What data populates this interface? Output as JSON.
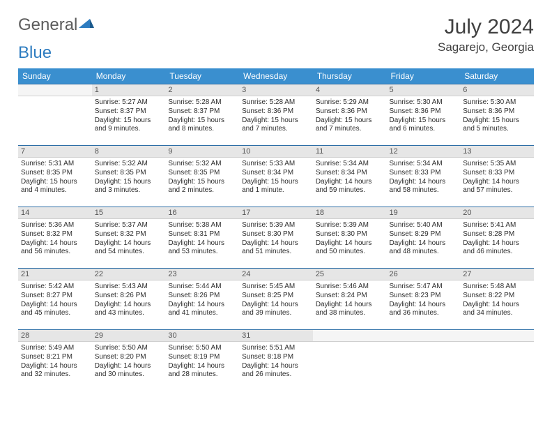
{
  "logo": {
    "text1": "General",
    "text2": "Blue"
  },
  "title": "July 2024",
  "location": "Sagarejo, Georgia",
  "colors": {
    "header_bg": "#3a8fcf",
    "header_text": "#ffffff",
    "daynum_bg": "#e6e6e6",
    "daynum_border_top": "#2d6ea6",
    "text": "#2c2c2c",
    "title_color": "#404040",
    "logo_gray": "#5c5c5c",
    "logo_blue": "#2d7cc0"
  },
  "weekdays": [
    "Sunday",
    "Monday",
    "Tuesday",
    "Wednesday",
    "Thursday",
    "Friday",
    "Saturday"
  ],
  "weeks": [
    [
      null,
      {
        "n": "1",
        "sr": "5:27 AM",
        "ss": "8:37 PM",
        "dl": "15 hours and 9 minutes."
      },
      {
        "n": "2",
        "sr": "5:28 AM",
        "ss": "8:37 PM",
        "dl": "15 hours and 8 minutes."
      },
      {
        "n": "3",
        "sr": "5:28 AM",
        "ss": "8:36 PM",
        "dl": "15 hours and 7 minutes."
      },
      {
        "n": "4",
        "sr": "5:29 AM",
        "ss": "8:36 PM",
        "dl": "15 hours and 7 minutes."
      },
      {
        "n": "5",
        "sr": "5:30 AM",
        "ss": "8:36 PM",
        "dl": "15 hours and 6 minutes."
      },
      {
        "n": "6",
        "sr": "5:30 AM",
        "ss": "8:36 PM",
        "dl": "15 hours and 5 minutes."
      }
    ],
    [
      {
        "n": "7",
        "sr": "5:31 AM",
        "ss": "8:35 PM",
        "dl": "15 hours and 4 minutes."
      },
      {
        "n": "8",
        "sr": "5:32 AM",
        "ss": "8:35 PM",
        "dl": "15 hours and 3 minutes."
      },
      {
        "n": "9",
        "sr": "5:32 AM",
        "ss": "8:35 PM",
        "dl": "15 hours and 2 minutes."
      },
      {
        "n": "10",
        "sr": "5:33 AM",
        "ss": "8:34 PM",
        "dl": "15 hours and 1 minute."
      },
      {
        "n": "11",
        "sr": "5:34 AM",
        "ss": "8:34 PM",
        "dl": "14 hours and 59 minutes."
      },
      {
        "n": "12",
        "sr": "5:34 AM",
        "ss": "8:33 PM",
        "dl": "14 hours and 58 minutes."
      },
      {
        "n": "13",
        "sr": "5:35 AM",
        "ss": "8:33 PM",
        "dl": "14 hours and 57 minutes."
      }
    ],
    [
      {
        "n": "14",
        "sr": "5:36 AM",
        "ss": "8:32 PM",
        "dl": "14 hours and 56 minutes."
      },
      {
        "n": "15",
        "sr": "5:37 AM",
        "ss": "8:32 PM",
        "dl": "14 hours and 54 minutes."
      },
      {
        "n": "16",
        "sr": "5:38 AM",
        "ss": "8:31 PM",
        "dl": "14 hours and 53 minutes."
      },
      {
        "n": "17",
        "sr": "5:39 AM",
        "ss": "8:30 PM",
        "dl": "14 hours and 51 minutes."
      },
      {
        "n": "18",
        "sr": "5:39 AM",
        "ss": "8:30 PM",
        "dl": "14 hours and 50 minutes."
      },
      {
        "n": "19",
        "sr": "5:40 AM",
        "ss": "8:29 PM",
        "dl": "14 hours and 48 minutes."
      },
      {
        "n": "20",
        "sr": "5:41 AM",
        "ss": "8:28 PM",
        "dl": "14 hours and 46 minutes."
      }
    ],
    [
      {
        "n": "21",
        "sr": "5:42 AM",
        "ss": "8:27 PM",
        "dl": "14 hours and 45 minutes."
      },
      {
        "n": "22",
        "sr": "5:43 AM",
        "ss": "8:26 PM",
        "dl": "14 hours and 43 minutes."
      },
      {
        "n": "23",
        "sr": "5:44 AM",
        "ss": "8:26 PM",
        "dl": "14 hours and 41 minutes."
      },
      {
        "n": "24",
        "sr": "5:45 AM",
        "ss": "8:25 PM",
        "dl": "14 hours and 39 minutes."
      },
      {
        "n": "25",
        "sr": "5:46 AM",
        "ss": "8:24 PM",
        "dl": "14 hours and 38 minutes."
      },
      {
        "n": "26",
        "sr": "5:47 AM",
        "ss": "8:23 PM",
        "dl": "14 hours and 36 minutes."
      },
      {
        "n": "27",
        "sr": "5:48 AM",
        "ss": "8:22 PM",
        "dl": "14 hours and 34 minutes."
      }
    ],
    [
      {
        "n": "28",
        "sr": "5:49 AM",
        "ss": "8:21 PM",
        "dl": "14 hours and 32 minutes."
      },
      {
        "n": "29",
        "sr": "5:50 AM",
        "ss": "8:20 PM",
        "dl": "14 hours and 30 minutes."
      },
      {
        "n": "30",
        "sr": "5:50 AM",
        "ss": "8:19 PM",
        "dl": "14 hours and 28 minutes."
      },
      {
        "n": "31",
        "sr": "5:51 AM",
        "ss": "8:18 PM",
        "dl": "14 hours and 26 minutes."
      },
      null,
      null,
      null
    ]
  ],
  "labels": {
    "sunrise": "Sunrise:",
    "sunset": "Sunset:",
    "daylight": "Daylight:"
  }
}
